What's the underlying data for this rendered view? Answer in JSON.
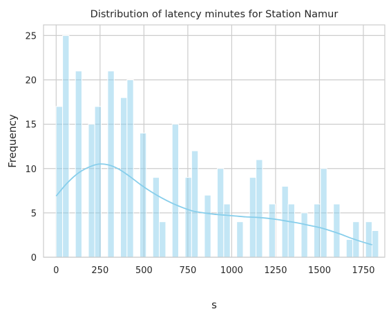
{
  "chart_data": {
    "type": "bar",
    "title": "Distribution of latency minutes for Station Namur",
    "xlabel": "s",
    "ylabel": "Frequency",
    "xlim": [
      -72,
      1872
    ],
    "ylim": [
      0,
      26.2
    ],
    "xticks": [
      0,
      250,
      500,
      750,
      1000,
      1250,
      1500,
      1750
    ],
    "yticks": [
      0,
      5,
      10,
      15,
      20,
      25
    ],
    "grid": true,
    "bin_width": 36.7,
    "series": [
      {
        "kind": "histogram",
        "color": "#87ceeb",
        "bins": [
          {
            "x": 18,
            "count": 17
          },
          {
            "x": 55,
            "count": 25
          },
          {
            "x": 128,
            "count": 21
          },
          {
            "x": 202,
            "count": 15
          },
          {
            "x": 238,
            "count": 17
          },
          {
            "x": 312,
            "count": 21
          },
          {
            "x": 385,
            "count": 18
          },
          {
            "x": 422,
            "count": 20
          },
          {
            "x": 495,
            "count": 14
          },
          {
            "x": 569,
            "count": 9
          },
          {
            "x": 606,
            "count": 4
          },
          {
            "x": 679,
            "count": 15
          },
          {
            "x": 753,
            "count": 9
          },
          {
            "x": 790,
            "count": 12
          },
          {
            "x": 863,
            "count": 7
          },
          {
            "x": 936,
            "count": 10
          },
          {
            "x": 973,
            "count": 6
          },
          {
            "x": 1047,
            "count": 4
          },
          {
            "x": 1120,
            "count": 9
          },
          {
            "x": 1157,
            "count": 11
          },
          {
            "x": 1230,
            "count": 6
          },
          {
            "x": 1304,
            "count": 8
          },
          {
            "x": 1340,
            "count": 6
          },
          {
            "x": 1414,
            "count": 5
          },
          {
            "x": 1487,
            "count": 6
          },
          {
            "x": 1524,
            "count": 10
          },
          {
            "x": 1598,
            "count": 6
          },
          {
            "x": 1671,
            "count": 2
          },
          {
            "x": 1708,
            "count": 4
          },
          {
            "x": 1781,
            "count": 4
          },
          {
            "x": 1818,
            "count": 3
          }
        ]
      },
      {
        "kind": "kde",
        "color": "#87ceeb",
        "points": [
          [
            0,
            6.9
          ],
          [
            60,
            8.3
          ],
          [
            120,
            9.4
          ],
          [
            180,
            10.1
          ],
          [
            240,
            10.5
          ],
          [
            300,
            10.4
          ],
          [
            360,
            9.9
          ],
          [
            420,
            9.1
          ],
          [
            480,
            8.2
          ],
          [
            540,
            7.4
          ],
          [
            600,
            6.7
          ],
          [
            660,
            6.1
          ],
          [
            720,
            5.6
          ],
          [
            780,
            5.2
          ],
          [
            840,
            5.0
          ],
          [
            900,
            4.85
          ],
          [
            960,
            4.75
          ],
          [
            1020,
            4.65
          ],
          [
            1080,
            4.55
          ],
          [
            1140,
            4.5
          ],
          [
            1200,
            4.4
          ],
          [
            1260,
            4.25
          ],
          [
            1320,
            4.05
          ],
          [
            1380,
            3.85
          ],
          [
            1440,
            3.6
          ],
          [
            1500,
            3.35
          ],
          [
            1560,
            3.0
          ],
          [
            1620,
            2.6
          ],
          [
            1680,
            2.15
          ],
          [
            1740,
            1.75
          ],
          [
            1800,
            1.4
          ]
        ]
      }
    ]
  }
}
